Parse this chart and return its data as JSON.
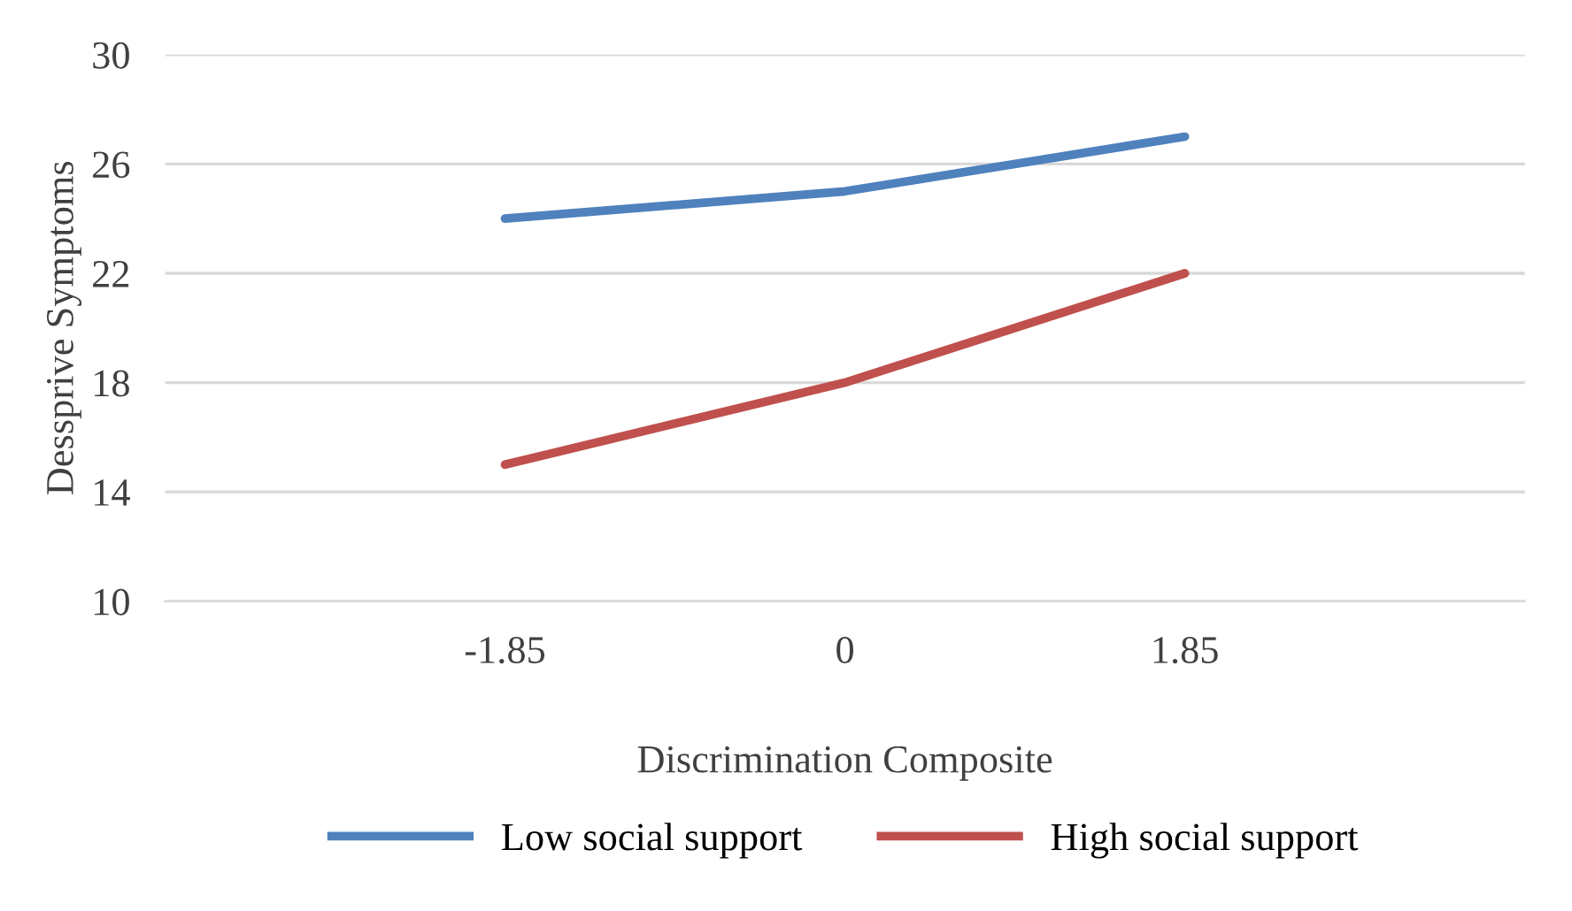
{
  "chart_data": {
    "type": "line",
    "xlabel": "Discrimination Composite",
    "ylabel": "Dessprive Symptoms",
    "categories": [
      "-1.85",
      "0",
      "1.85"
    ],
    "series": [
      {
        "name": "Low social support",
        "color": "#4f81bd",
        "values": [
          24,
          25,
          27
        ]
      },
      {
        "name": "High social support",
        "color": "#c0504d",
        "values": [
          15,
          18,
          22
        ]
      }
    ],
    "ylim": [
      10,
      30
    ],
    "yticks": [
      10,
      14,
      18,
      22,
      26,
      30
    ],
    "grid": "y",
    "legend": "bottom"
  }
}
